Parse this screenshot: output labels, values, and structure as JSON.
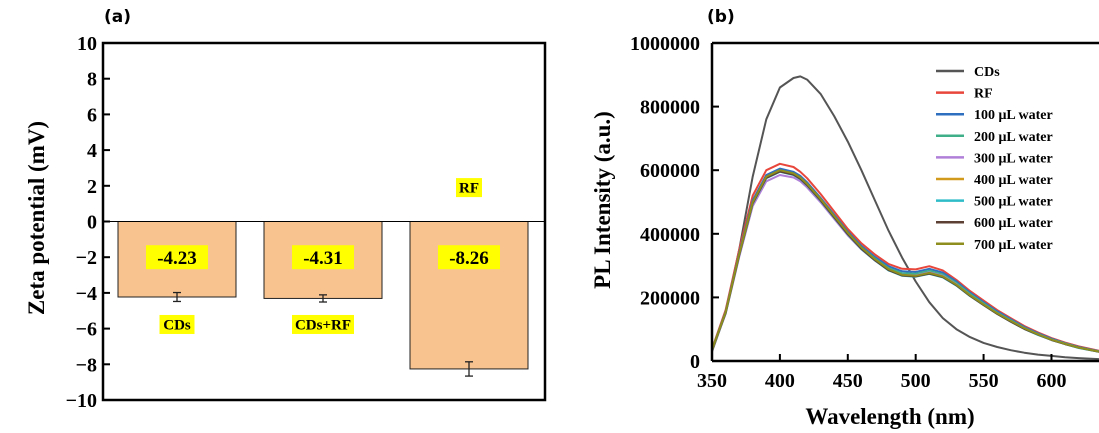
{
  "panels": {
    "a": "(a)",
    "b": "(b)"
  },
  "chart_data": [
    {
      "type": "bar",
      "panel": "(a)",
      "title": "",
      "xlabel": "",
      "ylabel": "Zeta potential (mV)",
      "ylim": [
        -10,
        10
      ],
      "yticks": [
        10,
        8,
        6,
        4,
        2,
        0,
        -2,
        -4,
        -6,
        -8,
        -10
      ],
      "ytick_labels": [
        "10",
        "8",
        "6",
        "4",
        "2",
        "0",
        "−2",
        "−4",
        "−6",
        "−8",
        "−10"
      ],
      "categories": [
        "CDs",
        "CDs+RF",
        "RF"
      ],
      "values": [
        -4.23,
        -4.31,
        -8.26
      ],
      "value_labels": [
        "-4.23",
        "-4.31",
        "-8.26"
      ],
      "errors": [
        0.25,
        0.2,
        0.4
      ],
      "bar_color": "#F8C38E",
      "label_highlight": "#FFFF00",
      "grid": false
    },
    {
      "type": "line",
      "panel": "(b)",
      "title": "",
      "xlabel": "Wavelength (nm)",
      "ylabel": "PL Intensity (a.u.)",
      "xlim": [
        350,
        635
      ],
      "ylim": [
        0,
        1000000
      ],
      "xticks": [
        350,
        400,
        450,
        500,
        550,
        600
      ],
      "yticks": [
        0,
        200000,
        400000,
        600000,
        800000,
        1000000
      ],
      "grid": false,
      "legend_position": "top-right",
      "x": [
        350,
        360,
        370,
        380,
        390,
        400,
        410,
        415,
        420,
        430,
        440,
        450,
        460,
        470,
        480,
        490,
        500,
        510,
        520,
        530,
        540,
        550,
        560,
        570,
        580,
        590,
        600,
        610,
        620,
        635
      ],
      "series": [
        {
          "name": "CDs",
          "color": "#555555",
          "values": [
            30000,
            150000,
            350000,
            580000,
            760000,
            860000,
            890000,
            895000,
            885000,
            840000,
            770000,
            690000,
            600000,
            505000,
            410000,
            325000,
            250000,
            185000,
            135000,
            100000,
            75000,
            57000,
            44000,
            34000,
            26000,
            20000,
            16000,
            12000,
            9000,
            6000
          ]
        },
        {
          "name": "RF",
          "color": "#E8463B",
          "values": [
            38000,
            160000,
            350000,
            520000,
            600000,
            620000,
            610000,
            595000,
            575000,
            525000,
            470000,
            415000,
            370000,
            335000,
            305000,
            290000,
            288000,
            298000,
            285000,
            255000,
            220000,
            190000,
            160000,
            135000,
            110000,
            90000,
            72000,
            58000,
            46000,
            32000
          ]
        },
        {
          "name": "100 μL water",
          "color": "#2E6FBF",
          "values": [
            36000,
            155000,
            340000,
            505000,
            585000,
            605000,
            595000,
            582000,
            562000,
            513000,
            460000,
            407000,
            362000,
            327000,
            298000,
            282000,
            280000,
            290000,
            278000,
            250000,
            215000,
            185000,
            156000,
            131000,
            107000,
            87000,
            70000,
            56000,
            44000,
            31000
          ]
        },
        {
          "name": "200 μL water",
          "color": "#3FAF8A",
          "values": [
            35000,
            152000,
            335000,
            498000,
            578000,
            598000,
            588000,
            575000,
            556000,
            508000,
            455000,
            402000,
            357000,
            322000,
            292000,
            276000,
            274000,
            284000,
            272000,
            245000,
            211000,
            181000,
            152000,
            128000,
            104000,
            85000,
            68000,
            55000,
            43000,
            30000
          ]
        },
        {
          "name": "300 μL water",
          "color": "#B07FD8",
          "values": [
            34000,
            148000,
            327000,
            487000,
            565000,
            585000,
            577000,
            565000,
            546000,
            499000,
            447000,
            395000,
            351000,
            316000,
            287000,
            271000,
            269000,
            279000,
            268000,
            241000,
            207000,
            178000,
            150000,
            126000,
            103000,
            84000,
            67000,
            54000,
            42000,
            30000
          ]
        },
        {
          "name": "400 μL water",
          "color": "#D19A1D",
          "values": [
            35000,
            151000,
            334000,
            497000,
            577000,
            597000,
            587000,
            574000,
            554000,
            506000,
            453000,
            400000,
            354000,
            318000,
            287000,
            270000,
            267000,
            276000,
            265000,
            239000,
            206000,
            177000,
            149000,
            125000,
            102000,
            83000,
            67000,
            53000,
            42000,
            29000
          ]
        },
        {
          "name": "500 μL water",
          "color": "#2EBCC8",
          "values": [
            35000,
            150000,
            332000,
            495000,
            575000,
            595000,
            585000,
            572000,
            552000,
            504000,
            451000,
            398000,
            352000,
            316000,
            285000,
            268000,
            265000,
            274000,
            263000,
            237000,
            204000,
            176000,
            148000,
            124000,
            101000,
            82000,
            66000,
            53000,
            41000,
            29000
          ]
        },
        {
          "name": "600 μL water",
          "color": "#5C4033",
          "values": [
            35000,
            151000,
            333000,
            496000,
            576000,
            596000,
            586000,
            573000,
            553000,
            505000,
            452000,
            399000,
            353000,
            317000,
            286000,
            269000,
            266000,
            275000,
            264000,
            238000,
            205000,
            176000,
            148000,
            124000,
            101000,
            83000,
            66000,
            53000,
            42000,
            29000
          ]
        },
        {
          "name": "700 μL water",
          "color": "#8E8E1E",
          "values": [
            36000,
            153000,
            336000,
            499000,
            580000,
            600000,
            590000,
            577000,
            557000,
            509000,
            456000,
            403000,
            357000,
            320000,
            289000,
            271000,
            268000,
            277000,
            266000,
            240000,
            207000,
            178000,
            150000,
            126000,
            103000,
            84000,
            67000,
            54000,
            42000,
            30000
          ]
        }
      ]
    }
  ]
}
